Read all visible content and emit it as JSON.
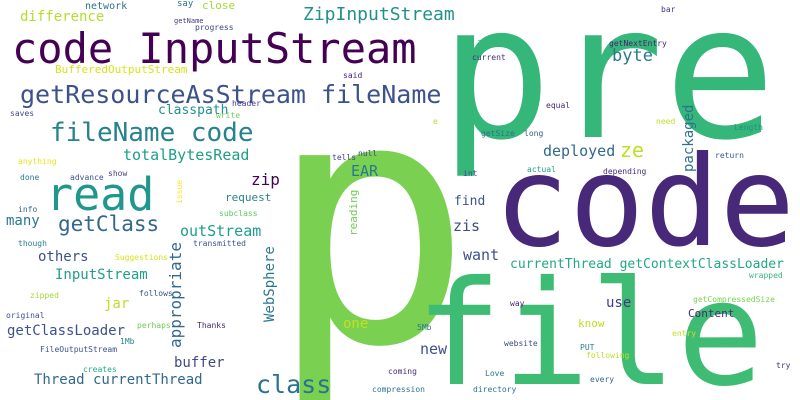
{
  "words": [
    {
      "text": "pre",
      "color": "#35b779"
    },
    {
      "text": "p",
      "color": "#7ad151"
    },
    {
      "text": "code",
      "color": "#482878"
    },
    {
      "text": "file",
      "color": "#3fbc73"
    },
    {
      "text": "code InputStream",
      "color": "#440154"
    },
    {
      "text": "read",
      "color": "#1f988b"
    },
    {
      "text": "getResourceAsStream fileName",
      "color": "#3b528b"
    },
    {
      "text": "fileName code",
      "color": "#26828e"
    },
    {
      "text": "ZipInputStream",
      "color": "#21918c"
    },
    {
      "text": "getClass",
      "color": "#31688e"
    },
    {
      "text": "class",
      "color": "#2c728e"
    },
    {
      "text": "byte",
      "color": "#2a788e"
    },
    {
      "text": "totalBytesRead",
      "color": "#1f9e89"
    },
    {
      "text": "deployed",
      "color": "#31688e"
    },
    {
      "text": "ze",
      "color": "#bddf26"
    },
    {
      "text": "classpath",
      "color": "#21918c"
    },
    {
      "text": "difference",
      "color": "#b5de2b"
    },
    {
      "text": "BufferedOutputStream",
      "color": "#d8e219"
    },
    {
      "text": "outStream",
      "color": "#1f9e89"
    },
    {
      "text": "zip",
      "color": "#440154"
    },
    {
      "text": "EAR",
      "color": "#2a788e"
    },
    {
      "text": "find",
      "color": "#38588c"
    },
    {
      "text": "zis",
      "color": "#3e4a89"
    },
    {
      "text": "want",
      "color": "#3b528b"
    },
    {
      "text": "currentThread getContextClassLoader",
      "color": "#22a884"
    },
    {
      "text": "InputStream",
      "color": "#1f9e89"
    },
    {
      "text": "others",
      "color": "#3b528b"
    },
    {
      "text": "many",
      "color": "#2a788e"
    },
    {
      "text": "jar",
      "color": "#bddf26"
    },
    {
      "text": "getClassLoader",
      "color": "#3b528b"
    },
    {
      "text": "buffer",
      "color": "#3e4a89"
    },
    {
      "text": "Thread currentThread",
      "color": "#31688e"
    },
    {
      "text": "one",
      "color": "#c2df23"
    },
    {
      "text": "new",
      "color": "#3b528b"
    },
    {
      "text": "use",
      "color": "#443983"
    },
    {
      "text": "know",
      "color": "#bddf26"
    },
    {
      "text": "Content",
      "color": "#482878"
    },
    {
      "text": "request",
      "color": "#26828e"
    },
    {
      "text": "network",
      "color": "#2c728e"
    },
    {
      "text": "close",
      "color": "#a2da37"
    },
    {
      "text": "say",
      "color": "#2a788e"
    },
    {
      "text": "progress",
      "color": "#404688"
    },
    {
      "text": "getName",
      "color": "#443983"
    },
    {
      "text": "bar",
      "color": "#46337f"
    },
    {
      "text": "getNextEntry",
      "color": "#482475"
    },
    {
      "text": "ZipEntry",
      "color": "#35b779"
    },
    {
      "text": "current",
      "color": "#472c7a"
    },
    {
      "text": "said",
      "color": "#482173"
    },
    {
      "text": "header",
      "color": "#433e85"
    },
    {
      "text": "write",
      "color": "#6ece58"
    },
    {
      "text": "saves",
      "color": "#3e4a89"
    },
    {
      "text": "equal",
      "color": "#482878"
    },
    {
      "text": "need",
      "color": "#c2df23"
    },
    {
      "text": "e",
      "color": "#b5de2b"
    },
    {
      "text": "getSize",
      "color": "#2c728e"
    },
    {
      "text": "long",
      "color": "#38588c"
    },
    {
      "text": "Length",
      "color": "#21918c"
    },
    {
      "text": "return",
      "color": "#38588c"
    },
    {
      "text": "anything",
      "color": "#e5e419"
    },
    {
      "text": "done",
      "color": "#2a788e"
    },
    {
      "text": "advance",
      "color": "#3b528b"
    },
    {
      "text": "show",
      "color": "#433e85"
    },
    {
      "text": "tells",
      "color": "#433e85"
    },
    {
      "text": "null",
      "color": "#3e4a89"
    },
    {
      "text": "int",
      "color": "#3b528b"
    },
    {
      "text": "actual",
      "color": "#1f9e89"
    },
    {
      "text": "depending",
      "color": "#472c7a"
    },
    {
      "text": "info",
      "color": "#31688e"
    },
    {
      "text": "though",
      "color": "#26828e"
    },
    {
      "text": "subclass",
      "color": "#5ec962"
    },
    {
      "text": "transmitted",
      "color": "#3b528b"
    },
    {
      "text": "Suggestions",
      "color": "#d8e219"
    },
    {
      "text": "zipped",
      "color": "#a0da39"
    },
    {
      "text": "follows",
      "color": "#3b528b"
    },
    {
      "text": "original",
      "color": "#3b528b"
    },
    {
      "text": "perhaps",
      "color": "#6ece58"
    },
    {
      "text": "Thanks",
      "color": "#482878"
    },
    {
      "text": "FileOutputStream",
      "color": "#3b528b"
    },
    {
      "text": "1Mb",
      "color": "#25858e"
    },
    {
      "text": "creates",
      "color": "#22a884"
    },
    {
      "text": "5Mb",
      "color": "#2a788e"
    },
    {
      "text": "website",
      "color": "#3e4a89"
    },
    {
      "text": "PUT",
      "color": "#26828e"
    },
    {
      "text": "following",
      "color": "#bddf26"
    },
    {
      "text": "way",
      "color": "#482878"
    },
    {
      "text": "entry",
      "color": "#c8e020"
    },
    {
      "text": "getCompressedSize",
      "color": "#7ad151"
    },
    {
      "text": "wrapped",
      "color": "#35b779"
    },
    {
      "text": "try",
      "color": "#472d7b"
    },
    {
      "text": "Love",
      "color": "#2a788e"
    },
    {
      "text": "every",
      "color": "#31688e"
    },
    {
      "text": "coming",
      "color": "#482878"
    },
    {
      "text": "directory",
      "color": "#2a788e"
    },
    {
      "text": "compression",
      "color": "#2c728e"
    },
    {
      "text": "issue",
      "color": "#fde725"
    },
    {
      "text": "appropriate",
      "color": "#31688e"
    },
    {
      "text": "WebSphere",
      "color": "#2a788e"
    },
    {
      "text": "packaged",
      "color": "#2c728e"
    },
    {
      "text": "reading",
      "color": "#6ece58"
    }
  ]
}
